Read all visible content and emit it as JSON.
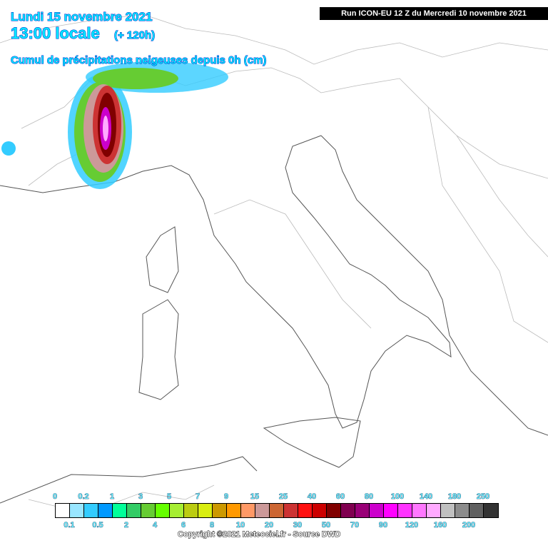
{
  "header": {
    "date": "Lundi 15 novembre 2021",
    "time": "13:00 locale",
    "lead": "(+ 120h)",
    "parameter": "Cumul de précipitations neigeuses depuis 0h (cm)",
    "run": "Run ICON-EU 12 Z du Mercredi 10 novembre 2021"
  },
  "legend": {
    "colors": [
      "#ffffff",
      "#99e6ff",
      "#33ccff",
      "#0099ff",
      "#00ff99",
      "#33cc66",
      "#66cc33",
      "#66ff00",
      "#a6ee33",
      "#bbcc11",
      "#d9ee11",
      "#cc9900",
      "#ff9900",
      "#ff9966",
      "#cc9999",
      "#cc6633",
      "#cc3333",
      "#ff1111",
      "#cc0000",
      "#800000",
      "#800050",
      "#990077",
      "#cc00cc",
      "#ff00ff",
      "#ff33ff",
      "#ff77ff",
      "#ffaaff",
      "#c0c0c0",
      "#8c8c8c",
      "#606060",
      "#333333"
    ],
    "top_labels": [
      "0",
      "0.2",
      "1",
      "3",
      "5",
      "7",
      "9",
      "15",
      "25",
      "40",
      "60",
      "80",
      "100",
      "140",
      "180",
      "250"
    ],
    "bottom_labels": [
      "0.1",
      "0.5",
      "2",
      "4",
      "6",
      "8",
      "10",
      "20",
      "30",
      "50",
      "70",
      "90",
      "120",
      "160",
      "200"
    ]
  },
  "footer": {
    "copyright": "Copyright ©2021 Meteociel.fr - Source DWD"
  }
}
